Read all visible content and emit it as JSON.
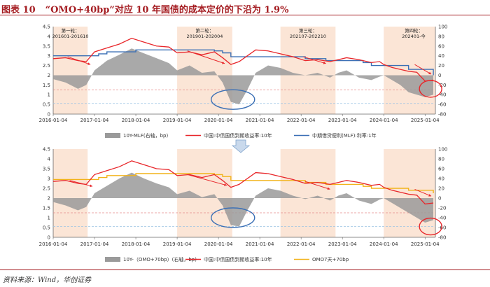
{
  "figure": {
    "label": "图表 10",
    "title": "“OMO+40bp”对应 10 年国债的成本定价的下沿为 1.9%",
    "source": "资料来源：Wind，华创证券"
  },
  "colors": {
    "title": "#a51d22",
    "cn10y": "#e8262a",
    "mlf": "#3a6fb5",
    "omo": "#f2b31a",
    "spread": "#9a9a9a",
    "shade": "#fbe5d6"
  },
  "chart_data": [
    {
      "type": "line",
      "panel": "top",
      "x_ticks": [
        "2016-01-04",
        "2017-01-04",
        "2018-01-04",
        "2019-01-04",
        "2020-01-04",
        "2021-01-04",
        "2022-01-04",
        "2023-01-04",
        "2024-01-04",
        "2025-01-04"
      ],
      "ylim_left": [
        0,
        4.5
      ],
      "y_left_ticks": [
        "0",
        "0.5",
        "1",
        "1.5",
        "2",
        "2.5",
        "3",
        "3.5",
        "4",
        "4.5"
      ],
      "ylim_right": [
        -80,
        100
      ],
      "y_right_ticks": [
        "-80",
        "-60",
        "-40",
        "-20",
        "0",
        "20",
        "40",
        "60",
        "80",
        "100"
      ],
      "reference_lines": [
        1.25,
        0.55
      ],
      "phases": [
        {
          "name": "第一轮：",
          "range": "201601-201610",
          "start": "2016-01",
          "end": "2016-10"
        },
        {
          "name": "第二轮：",
          "range": "201901-202004",
          "start": "2019-01",
          "end": "2020-04"
        },
        {
          "name": "第三轮：",
          "range": "202107-202210",
          "start": "2021-07",
          "end": "2022-10"
        },
        {
          "name": "第四轮：",
          "range": "202401-今",
          "start": "2024-01",
          "end": "2025-03"
        }
      ],
      "legend": [
        "10Y-MLF(右轴，bp)",
        "中国:中债国债到期收益率:10年",
        "中期借贷便利(MLF):利率:1年"
      ],
      "series": [
        {
          "name": "10Y-MLF(右轴，bp)",
          "type": "area",
          "axis": "right",
          "x": [
            2016.0,
            2016.3,
            2016.6,
            2016.8,
            2017.0,
            2017.3,
            2017.6,
            2017.9,
            2018.2,
            2018.5,
            2018.8,
            2019.0,
            2019.3,
            2019.6,
            2019.9,
            2020.1,
            2020.3,
            2020.5,
            2020.7,
            2020.9,
            2021.2,
            2021.5,
            2021.8,
            2022.1,
            2022.4,
            2022.7,
            2022.9,
            2023.1,
            2023.4,
            2023.7,
            2023.9,
            2024.0,
            2024.2,
            2024.4,
            2024.6,
            2024.8,
            2025.0,
            2025.2
          ],
          "y": [
            -8,
            -15,
            -28,
            -20,
            10,
            30,
            42,
            55,
            45,
            35,
            25,
            10,
            20,
            5,
            8,
            -15,
            -55,
            -60,
            -30,
            5,
            20,
            15,
            5,
            0,
            5,
            -5,
            5,
            10,
            -5,
            -10,
            -3,
            0,
            -10,
            -20,
            -35,
            -40,
            -45,
            -40
          ]
        },
        {
          "name": "中国:中债国债到期收益率:10年",
          "type": "line",
          "axis": "left",
          "x": [
            2016.0,
            2016.3,
            2016.6,
            2016.8,
            2017.0,
            2017.3,
            2017.6,
            2017.9,
            2018.2,
            2018.5,
            2018.8,
            2019.0,
            2019.3,
            2019.6,
            2019.9,
            2020.1,
            2020.3,
            2020.5,
            2020.7,
            2020.9,
            2021.2,
            2021.5,
            2021.8,
            2022.1,
            2022.4,
            2022.7,
            2022.9,
            2023.1,
            2023.4,
            2023.7,
            2023.9,
            2024.0,
            2024.2,
            2024.4,
            2024.6,
            2024.8,
            2025.0,
            2025.2
          ],
          "y": [
            2.85,
            2.9,
            2.75,
            2.7,
            3.2,
            3.4,
            3.6,
            3.9,
            3.7,
            3.5,
            3.45,
            3.15,
            3.2,
            3.05,
            3.2,
            2.9,
            2.55,
            2.7,
            3.0,
            3.3,
            3.25,
            3.1,
            2.95,
            2.75,
            2.8,
            2.7,
            2.8,
            2.9,
            2.8,
            2.65,
            2.7,
            2.55,
            2.4,
            2.3,
            2.2,
            2.15,
            1.7,
            1.75
          ]
        },
        {
          "name": "中期借贷便利(MLF):利率:1年",
          "type": "step",
          "axis": "left",
          "x": [
            2016.0,
            2017.1,
            2017.3,
            2018.0,
            2019.9,
            2020.1,
            2020.3,
            2021.9,
            2022.1,
            2022.6,
            2023.5,
            2023.7,
            2024.6,
            2025.2
          ],
          "y": [
            3.0,
            3.1,
            3.2,
            3.3,
            3.25,
            3.15,
            2.95,
            2.95,
            2.85,
            2.75,
            2.65,
            2.5,
            2.3,
            2.0
          ]
        }
      ]
    },
    {
      "type": "line",
      "panel": "bottom",
      "x_ticks": [
        "2016-01-04",
        "2017-01-04",
        "2018-01-04",
        "2019-01-04",
        "2020-01-04",
        "2021-01-04",
        "2022-01-04",
        "2023-01-04",
        "2024-01-04",
        "2025-01-04"
      ],
      "ylim_left": [
        0,
        4.5
      ],
      "y_left_ticks": [
        "0",
        "0.5",
        "1",
        "1.5",
        "2",
        "2.5",
        "3",
        "3.5",
        "4",
        "4.5"
      ],
      "ylim_right": [
        -80,
        100
      ],
      "y_right_ticks": [
        "-80",
        "-60",
        "-40",
        "-20",
        "0",
        "20",
        "40",
        "60",
        "80",
        "100"
      ],
      "reference_lines": [
        1.25,
        0.55
      ],
      "legend": [
        "10Y-（OMO+70bp）(右轴，bp)",
        "中国:中债国债到期收益率:10年",
        "OMO7天+70bp"
      ],
      "series": [
        {
          "name": "10Y-（OMO+70bp）(右轴，bp)",
          "type": "area",
          "axis": "right",
          "x": [
            2016.0,
            2016.3,
            2016.6,
            2016.8,
            2017.0,
            2017.3,
            2017.6,
            2017.9,
            2018.2,
            2018.5,
            2018.8,
            2019.0,
            2019.3,
            2019.6,
            2019.9,
            2020.1,
            2020.3,
            2020.5,
            2020.7,
            2020.9,
            2021.2,
            2021.5,
            2021.8,
            2022.1,
            2022.4,
            2022.7,
            2022.9,
            2023.1,
            2023.4,
            2023.7,
            2023.9,
            2024.0,
            2024.2,
            2024.4,
            2024.6,
            2024.8,
            2025.0,
            2025.2
          ],
          "y": [
            -8,
            -15,
            -25,
            -18,
            10,
            25,
            40,
            52,
            40,
            30,
            22,
            8,
            15,
            2,
            8,
            -15,
            -55,
            -58,
            -25,
            5,
            20,
            15,
            5,
            -2,
            5,
            -5,
            5,
            10,
            -5,
            -12,
            -3,
            0,
            -10,
            -20,
            -30,
            -40,
            -50,
            -45
          ]
        },
        {
          "name": "中国:中债国债到期收益率:10年",
          "type": "line",
          "axis": "left",
          "x": [
            2016.0,
            2016.3,
            2016.6,
            2016.8,
            2017.0,
            2017.3,
            2017.6,
            2017.9,
            2018.2,
            2018.5,
            2018.8,
            2019.0,
            2019.3,
            2019.6,
            2019.9,
            2020.1,
            2020.3,
            2020.5,
            2020.7,
            2020.9,
            2021.2,
            2021.5,
            2021.8,
            2022.1,
            2022.4,
            2022.7,
            2022.9,
            2023.1,
            2023.4,
            2023.7,
            2023.9,
            2024.0,
            2024.2,
            2024.4,
            2024.6,
            2024.8,
            2025.0,
            2025.2
          ],
          "y": [
            2.85,
            2.9,
            2.75,
            2.7,
            3.2,
            3.4,
            3.6,
            3.9,
            3.7,
            3.5,
            3.45,
            3.15,
            3.2,
            3.05,
            3.2,
            2.9,
            2.55,
            2.7,
            3.0,
            3.3,
            3.25,
            3.1,
            2.95,
            2.75,
            2.8,
            2.7,
            2.8,
            2.9,
            2.8,
            2.65,
            2.7,
            2.55,
            2.4,
            2.3,
            2.2,
            2.15,
            1.7,
            1.75
          ]
        },
        {
          "name": "OMO7天+70bp",
          "type": "step",
          "axis": "left",
          "x": [
            2016.0,
            2017.1,
            2017.3,
            2018.0,
            2019.9,
            2020.1,
            2020.3,
            2022.1,
            2022.6,
            2023.5,
            2023.7,
            2024.6,
            2025.2
          ],
          "y": [
            2.95,
            3.05,
            3.15,
            3.25,
            3.2,
            3.1,
            2.9,
            2.8,
            2.7,
            2.6,
            2.5,
            2.4,
            2.25
          ]
        }
      ]
    }
  ]
}
